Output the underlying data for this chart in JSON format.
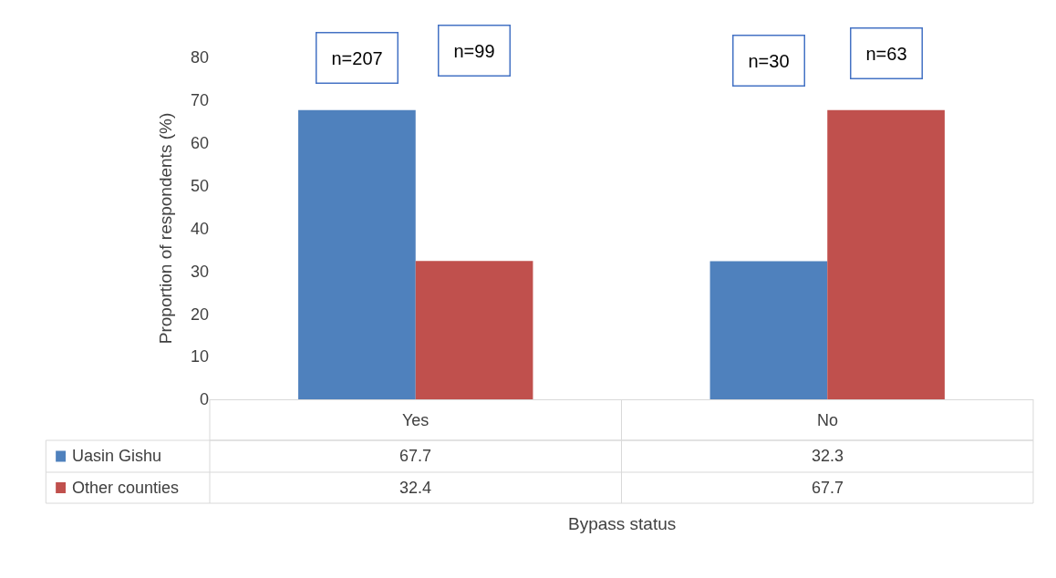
{
  "chart_data": {
    "type": "bar",
    "xlabel": "Bypass status",
    "ylabel": "Proportion of respondents (%)",
    "categories": [
      "Yes",
      "No"
    ],
    "series": [
      {
        "name": "Uasin Gishu",
        "color": "#4f81bd",
        "values": [
          67.7,
          32.3
        ]
      },
      {
        "name": "Other counties",
        "color": "#c0504d",
        "values": [
          32.4,
          67.7
        ]
      }
    ],
    "ylim": [
      0,
      80
    ],
    "yticks": [
      0,
      10,
      20,
      30,
      40,
      50,
      60,
      70,
      80
    ],
    "legend": "bottom left",
    "data_labels": true,
    "annotations": [
      "n=207",
      "n=99",
      "n=30",
      "n=63"
    ]
  }
}
